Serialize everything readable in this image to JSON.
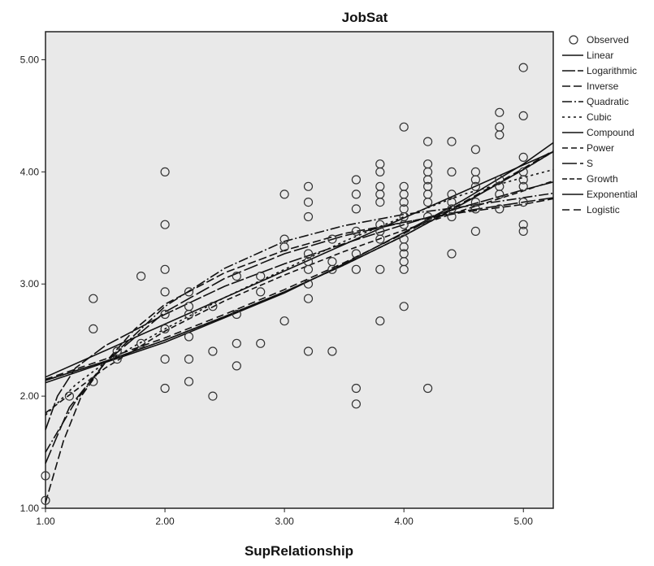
{
  "chart_data": {
    "type": "scatter",
    "title": "JobSat",
    "xlabel": "SupRelationship",
    "ylabel": "",
    "xlim": [
      1.0,
      5.25
    ],
    "ylim": [
      1.0,
      5.25
    ],
    "x_ticks": [
      1.0,
      2.0,
      3.0,
      4.0,
      5.0
    ],
    "y_ticks": [
      1.0,
      2.0,
      3.0,
      4.0,
      5.0
    ],
    "x_tick_labels": [
      "1.00",
      "2.00",
      "3.00",
      "4.00",
      "5.00"
    ],
    "y_tick_labels": [
      "1.00",
      "2.00",
      "3.00",
      "4.00",
      "5.00"
    ],
    "grid": false,
    "legend_position": "right",
    "background": "#e9e9e9",
    "observed": {
      "name": "Observed",
      "points": [
        [
          1.0,
          1.29
        ],
        [
          1.0,
          1.07
        ],
        [
          1.2,
          2.0
        ],
        [
          1.4,
          2.87
        ],
        [
          1.4,
          2.6
        ],
        [
          1.4,
          2.13
        ],
        [
          1.6,
          2.33
        ],
        [
          1.6,
          2.4
        ],
        [
          1.8,
          3.07
        ],
        [
          1.8,
          2.47
        ],
        [
          2.0,
          4.0
        ],
        [
          2.0,
          3.53
        ],
        [
          2.0,
          3.13
        ],
        [
          2.0,
          2.93
        ],
        [
          2.0,
          2.73
        ],
        [
          2.0,
          2.6
        ],
        [
          2.0,
          2.33
        ],
        [
          2.0,
          2.07
        ],
        [
          2.2,
          2.93
        ],
        [
          2.2,
          2.8
        ],
        [
          2.2,
          2.53
        ],
        [
          2.2,
          2.33
        ],
        [
          2.2,
          2.13
        ],
        [
          2.2,
          2.73
        ],
        [
          2.4,
          2.8
        ],
        [
          2.4,
          2.4
        ],
        [
          2.4,
          2.0
        ],
        [
          2.6,
          3.07
        ],
        [
          2.6,
          2.73
        ],
        [
          2.6,
          2.47
        ],
        [
          2.6,
          2.27
        ],
        [
          2.8,
          3.07
        ],
        [
          2.8,
          2.93
        ],
        [
          2.8,
          2.47
        ],
        [
          3.0,
          3.8
        ],
        [
          3.0,
          3.4
        ],
        [
          3.0,
          3.33
        ],
        [
          3.0,
          2.67
        ],
        [
          3.2,
          3.87
        ],
        [
          3.2,
          3.73
        ],
        [
          3.2,
          3.6
        ],
        [
          3.2,
          3.27
        ],
        [
          3.2,
          3.2
        ],
        [
          3.2,
          3.13
        ],
        [
          3.2,
          3.0
        ],
        [
          3.2,
          2.87
        ],
        [
          3.2,
          2.4
        ],
        [
          3.4,
          3.4
        ],
        [
          3.4,
          3.2
        ],
        [
          3.4,
          3.13
        ],
        [
          3.4,
          2.4
        ],
        [
          3.6,
          3.93
        ],
        [
          3.6,
          3.8
        ],
        [
          3.6,
          3.67
        ],
        [
          3.6,
          3.47
        ],
        [
          3.6,
          3.27
        ],
        [
          3.6,
          3.13
        ],
        [
          3.6,
          2.07
        ],
        [
          3.6,
          1.93
        ],
        [
          3.8,
          4.07
        ],
        [
          3.8,
          4.0
        ],
        [
          3.8,
          3.87
        ],
        [
          3.8,
          3.8
        ],
        [
          3.8,
          3.73
        ],
        [
          3.8,
          3.53
        ],
        [
          3.8,
          3.47
        ],
        [
          3.8,
          3.4
        ],
        [
          3.8,
          3.13
        ],
        [
          3.8,
          2.67
        ],
        [
          4.0,
          4.4
        ],
        [
          4.0,
          3.87
        ],
        [
          4.0,
          3.8
        ],
        [
          4.0,
          3.73
        ],
        [
          4.0,
          3.67
        ],
        [
          4.0,
          3.6
        ],
        [
          4.0,
          3.53
        ],
        [
          4.0,
          3.4
        ],
        [
          4.0,
          3.33
        ],
        [
          4.0,
          3.27
        ],
        [
          4.0,
          3.2
        ],
        [
          4.0,
          3.13
        ],
        [
          4.0,
          2.8
        ],
        [
          4.2,
          4.27
        ],
        [
          4.2,
          4.07
        ],
        [
          4.2,
          4.0
        ],
        [
          4.2,
          3.93
        ],
        [
          4.2,
          3.87
        ],
        [
          4.2,
          3.8
        ],
        [
          4.2,
          3.73
        ],
        [
          4.2,
          3.6
        ],
        [
          4.2,
          2.07
        ],
        [
          4.4,
          4.27
        ],
        [
          4.4,
          4.0
        ],
        [
          4.4,
          3.8
        ],
        [
          4.4,
          3.73
        ],
        [
          4.4,
          3.67
        ],
        [
          4.4,
          3.6
        ],
        [
          4.4,
          3.27
        ],
        [
          4.6,
          4.2
        ],
        [
          4.6,
          4.0
        ],
        [
          4.6,
          3.93
        ],
        [
          4.6,
          3.87
        ],
        [
          4.6,
          3.73
        ],
        [
          4.6,
          3.67
        ],
        [
          4.6,
          3.47
        ],
        [
          4.8,
          4.53
        ],
        [
          4.8,
          4.4
        ],
        [
          4.8,
          4.33
        ],
        [
          4.8,
          3.93
        ],
        [
          4.8,
          3.87
        ],
        [
          4.8,
          3.8
        ],
        [
          4.8,
          3.67
        ],
        [
          5.0,
          4.93
        ],
        [
          5.0,
          4.5
        ],
        [
          5.0,
          4.13
        ],
        [
          5.0,
          4.0
        ],
        [
          5.0,
          3.93
        ],
        [
          5.0,
          3.87
        ],
        [
          5.0,
          3.73
        ],
        [
          5.0,
          3.53
        ],
        [
          5.0,
          3.47
        ]
      ]
    },
    "series": [
      {
        "name": "Linear",
        "dash": "",
        "points": [
          [
            1.0,
            2.17
          ],
          [
            5.25,
            4.18
          ]
        ]
      },
      {
        "name": "Logarithmic",
        "dash": "16,3",
        "points": [
          [
            1.0,
            1.7
          ],
          [
            1.1,
            2.0
          ],
          [
            1.25,
            2.25
          ],
          [
            1.5,
            2.45
          ],
          [
            2.0,
            2.73
          ],
          [
            2.5,
            2.98
          ],
          [
            3.0,
            3.18
          ],
          [
            3.5,
            3.36
          ],
          [
            4.0,
            3.53
          ],
          [
            4.5,
            3.69
          ],
          [
            5.0,
            3.84
          ],
          [
            5.25,
            3.91
          ]
        ]
      },
      {
        "name": "Inverse",
        "dash": "10,4",
        "points": [
          [
            1.0,
            1.05
          ],
          [
            1.15,
            1.6
          ],
          [
            1.3,
            2.0
          ],
          [
            1.5,
            2.3
          ],
          [
            1.75,
            2.6
          ],
          [
            2.0,
            2.82
          ],
          [
            2.5,
            3.1
          ],
          [
            3.0,
            3.3
          ],
          [
            3.5,
            3.45
          ],
          [
            4.0,
            3.55
          ],
          [
            4.5,
            3.64
          ],
          [
            5.0,
            3.71
          ],
          [
            5.25,
            3.76
          ]
        ]
      },
      {
        "name": "Quadratic",
        "dash": "12,3,2,3",
        "points": [
          [
            1.0,
            1.5
          ],
          [
            1.25,
            1.95
          ],
          [
            1.5,
            2.3
          ],
          [
            2.0,
            2.8
          ],
          [
            2.5,
            3.14
          ],
          [
            3.0,
            3.38
          ],
          [
            3.5,
            3.52
          ],
          [
            4.0,
            3.62
          ],
          [
            4.5,
            3.69
          ],
          [
            5.0,
            3.77
          ],
          [
            5.25,
            3.81
          ]
        ]
      },
      {
        "name": "Cubic",
        "dash": "3,4",
        "points": [
          [
            1.0,
            1.83
          ],
          [
            1.25,
            2.1
          ],
          [
            1.5,
            2.3
          ],
          [
            2.0,
            2.6
          ],
          [
            2.5,
            2.88
          ],
          [
            3.0,
            3.13
          ],
          [
            3.5,
            3.38
          ],
          [
            4.0,
            3.6
          ],
          [
            4.5,
            3.8
          ],
          [
            5.0,
            3.95
          ],
          [
            5.25,
            4.02
          ]
        ]
      },
      {
        "name": "Compound",
        "dash": "",
        "points": [
          [
            1.0,
            2.12
          ],
          [
            1.5,
            2.3
          ],
          [
            2.0,
            2.48
          ],
          [
            2.5,
            2.7
          ],
          [
            3.0,
            2.92
          ],
          [
            3.5,
            3.18
          ],
          [
            4.0,
            3.46
          ],
          [
            4.5,
            3.75
          ],
          [
            5.0,
            4.07
          ],
          [
            5.25,
            4.26
          ]
        ]
      },
      {
        "name": "Power",
        "dash": "7,4",
        "points": [
          [
            1.0,
            1.85
          ],
          [
            1.25,
            2.05
          ],
          [
            1.5,
            2.25
          ],
          [
            2.0,
            2.58
          ],
          [
            2.5,
            2.85
          ],
          [
            3.0,
            3.08
          ],
          [
            3.5,
            3.29
          ],
          [
            4.0,
            3.48
          ],
          [
            4.5,
            3.66
          ],
          [
            5.0,
            3.83
          ],
          [
            5.25,
            3.92
          ]
        ]
      },
      {
        "name": "S",
        "dash": "18,4",
        "points": [
          [
            1.0,
            1.4
          ],
          [
            1.2,
            1.9
          ],
          [
            1.5,
            2.3
          ],
          [
            2.0,
            2.75
          ],
          [
            2.5,
            3.05
          ],
          [
            3.0,
            3.27
          ],
          [
            3.5,
            3.43
          ],
          [
            4.0,
            3.55
          ],
          [
            4.5,
            3.65
          ],
          [
            5.0,
            3.73
          ],
          [
            5.25,
            3.77
          ]
        ]
      },
      {
        "name": "Growth",
        "dash": "6,3",
        "points": [
          [
            1.0,
            2.14
          ],
          [
            1.5,
            2.31
          ],
          [
            2.0,
            2.5
          ],
          [
            2.5,
            2.71
          ],
          [
            3.0,
            2.93
          ],
          [
            3.5,
            3.17
          ],
          [
            4.0,
            3.43
          ],
          [
            4.5,
            3.72
          ],
          [
            5.0,
            4.02
          ],
          [
            5.25,
            4.18
          ]
        ]
      },
      {
        "name": "Exponential",
        "dash": "",
        "points": [
          [
            1.0,
            2.14
          ],
          [
            1.5,
            2.31
          ],
          [
            2.0,
            2.5
          ],
          [
            2.5,
            2.71
          ],
          [
            3.0,
            2.93
          ],
          [
            3.5,
            3.17
          ],
          [
            4.0,
            3.43
          ],
          [
            4.5,
            3.72
          ],
          [
            5.0,
            4.02
          ],
          [
            5.25,
            4.18
          ]
        ]
      },
      {
        "name": "Logistic",
        "dash": "9,5",
        "points": [
          [
            1.0,
            2.15
          ],
          [
            1.5,
            2.33
          ],
          [
            2.0,
            2.52
          ],
          [
            2.5,
            2.73
          ],
          [
            3.0,
            2.95
          ],
          [
            3.5,
            3.19
          ],
          [
            4.0,
            3.45
          ],
          [
            4.5,
            3.73
          ],
          [
            5.0,
            4.03
          ],
          [
            5.25,
            4.19
          ]
        ]
      }
    ]
  }
}
